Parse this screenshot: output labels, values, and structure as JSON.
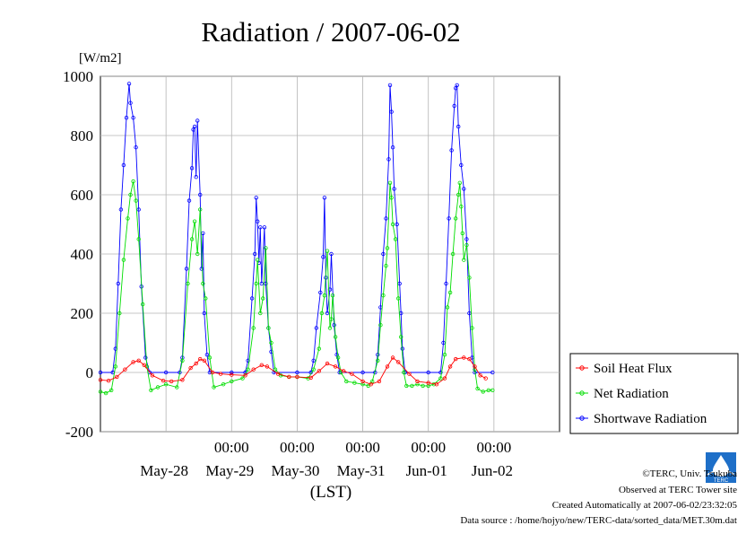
{
  "title": "Radiation / 2007-06-02",
  "ylabel": "[W/m2]",
  "xlabel": "(LST)",
  "y_ticks": [
    "1000",
    "800",
    "600",
    "400",
    "200",
    "0",
    "-200"
  ],
  "time_ticks": [
    "00:00",
    "00:00",
    "00:00",
    "00:00",
    "00:00"
  ],
  "date_labels": [
    "May-28",
    "May-29",
    "May-30",
    "May-31",
    "Jun-01",
    "Jun-02"
  ],
  "legend": [
    "Soil Heat Flux",
    "Net Radiation",
    "Shortwave Radiation"
  ],
  "credits": [
    "©TERC, Univ. Tsukuba",
    "Observed at TERC Tower site",
    "Created Automatically at 2007-06-02/23:32:05",
    "Data source : /home/hojyo/new/TERC-data/sorted_data/MET.30m.dat"
  ],
  "logo_text": "TERC",
  "chart_data": {
    "type": "line",
    "title": "Radiation / 2007-06-02",
    "ylabel": "[W/m2]",
    "xlabel": "(LST)",
    "ylim": [
      -200,
      1000
    ],
    "xlim": [
      "2007-05-27T00:00",
      "2007-06-03T00:00"
    ],
    "interval": "30 min",
    "grid": true,
    "legend_position": "right",
    "series": [
      {
        "name": "Soil Heat Flux",
        "color": "#ff0000",
        "points": [
          [
            "2007-05-27T00:00",
            -25
          ],
          [
            "2007-05-27T03:00",
            -28
          ],
          [
            "2007-05-27T06:00",
            -15
          ],
          [
            "2007-05-27T09:00",
            10
          ],
          [
            "2007-05-27T12:00",
            35
          ],
          [
            "2007-05-27T14:00",
            40
          ],
          [
            "2007-05-27T16:00",
            25
          ],
          [
            "2007-05-27T19:00",
            -10
          ],
          [
            "2007-05-27T23:00",
            -28
          ],
          [
            "2007-05-28T02:00",
            -30
          ],
          [
            "2007-05-28T06:00",
            -25
          ],
          [
            "2007-05-28T09:00",
            15
          ],
          [
            "2007-05-28T11:00",
            30
          ],
          [
            "2007-05-28T12:30",
            45
          ],
          [
            "2007-05-28T14:00",
            40
          ],
          [
            "2007-05-28T17:00",
            0
          ],
          [
            "2007-05-28T20:00",
            -5
          ],
          [
            "2007-05-29T00:00",
            -8
          ],
          [
            "2007-05-29T05:00",
            -10
          ],
          [
            "2007-05-29T08:00",
            10
          ],
          [
            "2007-05-29T11:00",
            25
          ],
          [
            "2007-05-29T13:00",
            20
          ],
          [
            "2007-05-29T17:00",
            -5
          ],
          [
            "2007-05-29T21:00",
            -15
          ],
          [
            "2007-05-30T00:00",
            -15
          ],
          [
            "2007-05-30T05:00",
            -18
          ],
          [
            "2007-05-30T08:00",
            5
          ],
          [
            "2007-05-30T11:00",
            30
          ],
          [
            "2007-05-30T14:00",
            20
          ],
          [
            "2007-05-30T17:00",
            5
          ],
          [
            "2007-05-30T20:00",
            -5
          ],
          [
            "2007-05-31T00:00",
            -30
          ],
          [
            "2007-05-31T03:00",
            -40
          ],
          [
            "2007-05-31T06:00",
            -30
          ],
          [
            "2007-05-31T09:00",
            20
          ],
          [
            "2007-05-31T11:00",
            50
          ],
          [
            "2007-05-31T13:00",
            35
          ],
          [
            "2007-05-31T17:00",
            -5
          ],
          [
            "2007-05-31T20:00",
            -30
          ],
          [
            "2007-06-01T00:00",
            -35
          ],
          [
            "2007-06-01T03:00",
            -40
          ],
          [
            "2007-06-01T06:00",
            -20
          ],
          [
            "2007-06-01T08:00",
            20
          ],
          [
            "2007-06-01T10:00",
            45
          ],
          [
            "2007-06-01T13:00",
            50
          ],
          [
            "2007-06-01T15:00",
            45
          ],
          [
            "2007-06-01T17:00",
            20
          ],
          [
            "2007-06-01T19:00",
            -10
          ],
          [
            "2007-06-01T21:00",
            -20
          ]
        ]
      },
      {
        "name": "Net Radiation",
        "color": "#00dd00",
        "points": [
          [
            "2007-05-27T00:00",
            -65
          ],
          [
            "2007-05-27T02:00",
            -70
          ],
          [
            "2007-05-27T04:00",
            -60
          ],
          [
            "2007-05-27T05:30",
            20
          ],
          [
            "2007-05-27T07:00",
            200
          ],
          [
            "2007-05-27T08:30",
            380
          ],
          [
            "2007-05-27T10:00",
            520
          ],
          [
            "2007-05-27T11:00",
            600
          ],
          [
            "2007-05-27T12:00",
            645
          ],
          [
            "2007-05-27T13:00",
            580
          ],
          [
            "2007-05-27T14:00",
            450
          ],
          [
            "2007-05-27T15:30",
            230
          ],
          [
            "2007-05-27T17:00",
            20
          ],
          [
            "2007-05-27T18:30",
            -60
          ],
          [
            "2007-05-27T21:00",
            -50
          ],
          [
            "2007-05-28T00:00",
            -40
          ],
          [
            "2007-05-28T04:00",
            -50
          ],
          [
            "2007-05-28T06:00",
            40
          ],
          [
            "2007-05-28T08:00",
            300
          ],
          [
            "2007-05-28T09:30",
            450
          ],
          [
            "2007-05-28T10:30",
            510
          ],
          [
            "2007-05-28T11:30",
            400
          ],
          [
            "2007-05-28T12:30",
            550
          ],
          [
            "2007-05-28T13:30",
            300
          ],
          [
            "2007-05-28T14:30",
            250
          ],
          [
            "2007-05-28T16:00",
            50
          ],
          [
            "2007-05-28T17:30",
            -50
          ],
          [
            "2007-05-28T21:00",
            -40
          ],
          [
            "2007-05-29T00:00",
            -30
          ],
          [
            "2007-05-29T04:00",
            -20
          ],
          [
            "2007-05-29T06:00",
            10
          ],
          [
            "2007-05-29T08:00",
            150
          ],
          [
            "2007-05-29T09:00",
            300
          ],
          [
            "2007-05-29T09:30",
            380
          ],
          [
            "2007-05-29T10:30",
            200
          ],
          [
            "2007-05-29T11:30",
            250
          ],
          [
            "2007-05-29T12:30",
            420
          ],
          [
            "2007-05-29T13:30",
            150
          ],
          [
            "2007-05-29T14:30",
            100
          ],
          [
            "2007-05-29T16:00",
            10
          ],
          [
            "2007-05-29T18:00",
            -10
          ],
          [
            "2007-05-29T21:00",
            -15
          ],
          [
            "2007-05-30T00:00",
            -15
          ],
          [
            "2007-05-30T04:00",
            -20
          ],
          [
            "2007-05-30T06:00",
            10
          ],
          [
            "2007-05-30T08:00",
            80
          ],
          [
            "2007-05-30T09:00",
            200
          ],
          [
            "2007-05-30T10:00",
            260
          ],
          [
            "2007-05-30T11:00",
            410
          ],
          [
            "2007-05-30T12:00",
            150
          ],
          [
            "2007-05-30T12:30",
            180
          ],
          [
            "2007-05-30T13:00",
            260
          ],
          [
            "2007-05-30T14:00",
            120
          ],
          [
            "2007-05-30T15:00",
            50
          ],
          [
            "2007-05-30T16:00",
            0
          ],
          [
            "2007-05-30T18:00",
            -30
          ],
          [
            "2007-05-30T21:00",
            -35
          ],
          [
            "2007-05-31T00:00",
            -40
          ],
          [
            "2007-05-31T02:00",
            -45
          ],
          [
            "2007-05-31T03:30",
            -30
          ],
          [
            "2007-05-31T05:30",
            40
          ],
          [
            "2007-05-31T06:30",
            160
          ],
          [
            "2007-05-31T07:30",
            260
          ],
          [
            "2007-05-31T08:30",
            360
          ],
          [
            "2007-05-31T09:00",
            420
          ],
          [
            "2007-05-31T10:00",
            640
          ],
          [
            "2007-05-31T10:30",
            590
          ],
          [
            "2007-05-31T11:00",
            500
          ],
          [
            "2007-05-31T12:00",
            450
          ],
          [
            "2007-05-31T13:00",
            250
          ],
          [
            "2007-05-31T14:00",
            120
          ],
          [
            "2007-05-31T15:00",
            0
          ],
          [
            "2007-05-31T16:00",
            -45
          ],
          [
            "2007-05-31T18:00",
            -45
          ],
          [
            "2007-05-31T20:00",
            -40
          ],
          [
            "2007-05-31T22:00",
            -45
          ],
          [
            "2007-06-01T00:00",
            -45
          ],
          [
            "2007-06-01T02:00",
            -40
          ],
          [
            "2007-06-01T04:30",
            -20
          ],
          [
            "2007-06-01T06:00",
            60
          ],
          [
            "2007-06-01T07:00",
            220
          ],
          [
            "2007-06-01T08:00",
            270
          ],
          [
            "2007-06-01T09:00",
            400
          ],
          [
            "2007-06-01T10:00",
            520
          ],
          [
            "2007-06-01T11:00",
            600
          ],
          [
            "2007-06-01T11:30",
            640
          ],
          [
            "2007-06-01T12:00",
            560
          ],
          [
            "2007-06-01T12:30",
            470
          ],
          [
            "2007-06-01T13:00",
            380
          ],
          [
            "2007-06-01T14:00",
            430
          ],
          [
            "2007-06-01T15:00",
            320
          ],
          [
            "2007-06-01T16:00",
            150
          ],
          [
            "2007-06-01T17:00",
            10
          ],
          [
            "2007-06-01T18:00",
            -55
          ],
          [
            "2007-06-01T20:00",
            -65
          ],
          [
            "2007-06-01T22:00",
            -60
          ],
          [
            "2007-06-01T23:30",
            -60
          ]
        ]
      },
      {
        "name": "Shortwave Radiation",
        "color": "#0000ff",
        "points": [
          [
            "2007-05-27T00:00",
            0
          ],
          [
            "2007-05-27T04:30",
            0
          ],
          [
            "2007-05-27T05:30",
            80
          ],
          [
            "2007-05-27T06:30",
            300
          ],
          [
            "2007-05-27T07:30",
            550
          ],
          [
            "2007-05-27T08:30",
            700
          ],
          [
            "2007-05-27T09:30",
            860
          ],
          [
            "2007-05-27T10:30",
            975
          ],
          [
            "2007-05-27T11:00",
            910
          ],
          [
            "2007-05-27T12:00",
            860
          ],
          [
            "2007-05-27T13:00",
            760
          ],
          [
            "2007-05-27T14:00",
            550
          ],
          [
            "2007-05-27T15:00",
            290
          ],
          [
            "2007-05-27T16:30",
            50
          ],
          [
            "2007-05-27T18:00",
            0
          ],
          [
            "2007-05-28T00:00",
            0
          ],
          [
            "2007-05-28T05:00",
            0
          ],
          [
            "2007-05-28T06:00",
            50
          ],
          [
            "2007-05-28T07:30",
            350
          ],
          [
            "2007-05-28T08:30",
            580
          ],
          [
            "2007-05-28T09:30",
            690
          ],
          [
            "2007-05-28T10:00",
            820
          ],
          [
            "2007-05-28T10:30",
            830
          ],
          [
            "2007-05-28T11:00",
            660
          ],
          [
            "2007-05-28T11:30",
            850
          ],
          [
            "2007-05-28T12:30",
            600
          ],
          [
            "2007-05-28T13:00",
            350
          ],
          [
            "2007-05-28T13:30",
            470
          ],
          [
            "2007-05-28T14:00",
            200
          ],
          [
            "2007-05-28T15:00",
            60
          ],
          [
            "2007-05-28T16:00",
            0
          ],
          [
            "2007-05-29T00:00",
            0
          ],
          [
            "2007-05-29T05:00",
            0
          ],
          [
            "2007-05-29T06:00",
            40
          ],
          [
            "2007-05-29T07:30",
            250
          ],
          [
            "2007-05-29T08:30",
            400
          ],
          [
            "2007-05-29T09:00",
            590
          ],
          [
            "2007-05-29T09:30",
            510
          ],
          [
            "2007-05-29T10:00",
            370
          ],
          [
            "2007-05-29T10:30",
            490
          ],
          [
            "2007-05-29T11:00",
            300
          ],
          [
            "2007-05-29T12:00",
            490
          ],
          [
            "2007-05-29T12:30",
            300
          ],
          [
            "2007-05-29T13:30",
            150
          ],
          [
            "2007-05-29T14:30",
            70
          ],
          [
            "2007-05-29T15:30",
            0
          ],
          [
            "2007-05-30T00:00",
            0
          ],
          [
            "2007-05-30T05:00",
            0
          ],
          [
            "2007-05-30T06:00",
            40
          ],
          [
            "2007-05-30T07:00",
            150
          ],
          [
            "2007-05-30T08:30",
            270
          ],
          [
            "2007-05-30T09:30",
            390
          ],
          [
            "2007-05-30T10:00",
            590
          ],
          [
            "2007-05-30T10:30",
            320
          ],
          [
            "2007-05-30T11:00",
            200
          ],
          [
            "2007-05-30T12:00",
            280
          ],
          [
            "2007-05-30T12:30",
            400
          ],
          [
            "2007-05-30T13:30",
            160
          ],
          [
            "2007-05-30T14:30",
            60
          ],
          [
            "2007-05-30T15:30",
            0
          ],
          [
            "2007-05-31T00:00",
            0
          ],
          [
            "2007-05-31T04:30",
            0
          ],
          [
            "2007-05-31T05:30",
            60
          ],
          [
            "2007-05-31T06:30",
            220
          ],
          [
            "2007-05-31T07:30",
            400
          ],
          [
            "2007-05-31T08:30",
            520
          ],
          [
            "2007-05-31T09:30",
            720
          ],
          [
            "2007-05-31T10:00",
            970
          ],
          [
            "2007-05-31T10:30",
            880
          ],
          [
            "2007-05-31T11:00",
            760
          ],
          [
            "2007-05-31T11:30",
            620
          ],
          [
            "2007-05-31T12:30",
            500
          ],
          [
            "2007-05-31T13:30",
            300
          ],
          [
            "2007-05-31T14:00",
            200
          ],
          [
            "2007-05-31T14:30",
            80
          ],
          [
            "2007-05-31T15:30",
            0
          ],
          [
            "2007-06-01T00:00",
            0
          ],
          [
            "2007-06-01T04:30",
            0
          ],
          [
            "2007-06-01T05:30",
            100
          ],
          [
            "2007-06-01T06:30",
            300
          ],
          [
            "2007-06-01T07:30",
            520
          ],
          [
            "2007-06-01T08:30",
            750
          ],
          [
            "2007-06-01T09:30",
            900
          ],
          [
            "2007-06-01T10:00",
            960
          ],
          [
            "2007-06-01T10:30",
            970
          ],
          [
            "2007-06-01T11:00",
            830
          ],
          [
            "2007-06-01T12:00",
            700
          ],
          [
            "2007-06-01T13:00",
            620
          ],
          [
            "2007-06-01T14:00",
            450
          ],
          [
            "2007-06-01T15:00",
            200
          ],
          [
            "2007-06-01T16:00",
            50
          ],
          [
            "2007-06-01T17:00",
            0
          ],
          [
            "2007-06-01T23:30",
            0
          ]
        ]
      }
    ]
  }
}
